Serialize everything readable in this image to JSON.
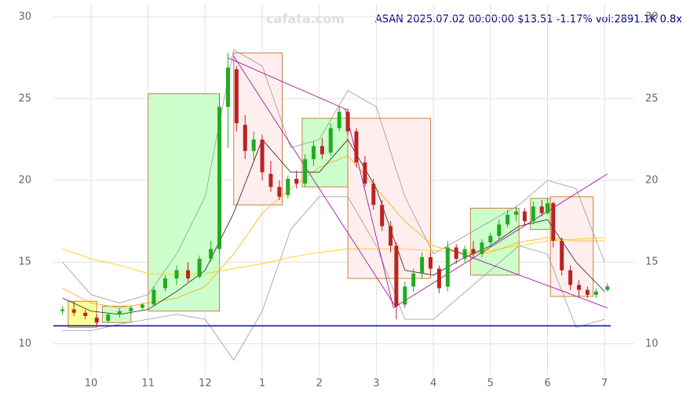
{
  "chart_data": {
    "type": "candlestick",
    "title": "ASAN 2025.07.02 00:00:00 $13.51 -1.17% vol:2891.1K 0.8x",
    "watermark": "cafata.com",
    "xlim": [
      9.34,
      19.52
    ],
    "ylim": [
      8.1,
      30.8
    ],
    "yticks": [
      10,
      15,
      20,
      25,
      30
    ],
    "xticks": [
      {
        "value": 10,
        "label": "10"
      },
      {
        "value": 11,
        "label": "11"
      },
      {
        "value": 12,
        "label": "12"
      },
      {
        "value": 13,
        "label": "1"
      },
      {
        "value": 14,
        "label": "2"
      },
      {
        "value": 15,
        "label": "3"
      },
      {
        "value": 16,
        "label": "4"
      },
      {
        "value": 17,
        "label": "5"
      },
      {
        "value": 18,
        "label": "6"
      },
      {
        "value": 19,
        "label": "7"
      }
    ],
    "grid": true,
    "up_color": "#22aa22",
    "down_color": "#bb2222",
    "candles": {
      "x": [
        9.5,
        9.7,
        9.9,
        10.1,
        10.3,
        10.5,
        10.7,
        10.9,
        11.1,
        11.3,
        11.5,
        11.7,
        11.9,
        12.1,
        12.25,
        12.4,
        12.55,
        12.7,
        12.85,
        13.0,
        13.15,
        13.3,
        13.45,
        13.6,
        13.75,
        13.9,
        14.05,
        14.2,
        14.35,
        14.5,
        14.65,
        14.8,
        14.95,
        15.1,
        15.25,
        15.35,
        15.5,
        15.65,
        15.8,
        15.95,
        16.1,
        16.25,
        16.4,
        16.55,
        16.7,
        16.85,
        17.0,
        17.15,
        17.3,
        17.45,
        17.6,
        17.75,
        17.9,
        18.0,
        18.1,
        18.25,
        18.4,
        18.55,
        18.7,
        18.85,
        19.05
      ],
      "open": [
        12,
        12.1,
        11.9,
        11.6,
        11.4,
        11.8,
        12.0,
        12.2,
        12.4,
        13.4,
        14.0,
        14.5,
        14.1,
        15.2,
        15.8,
        24.5,
        26.8,
        23.4,
        21.8,
        22.5,
        20.4,
        19.6,
        19.1,
        20.1,
        19.8,
        21.3,
        22.1,
        21.7,
        23.2,
        24.2,
        23.0,
        21.1,
        19.8,
        18.5,
        17.2,
        16.0,
        12.4,
        13.5,
        14.3,
        15.3,
        14.6,
        13.5,
        15.9,
        15.2,
        15.8,
        15.5,
        16.2,
        16.6,
        17.3,
        17.9,
        18.1,
        17.5,
        18.4,
        18.0,
        18.6,
        16.3,
        14.5,
        13.6,
        13.3,
        13.0,
        13.3
      ],
      "high": [
        12.3,
        12.6,
        12.1,
        11.8,
        11.9,
        12.2,
        12.3,
        12.5,
        13.5,
        14.2,
        14.8,
        15.0,
        15.4,
        16.3,
        25.3,
        27.8,
        27.0,
        24.0,
        23.0,
        22.8,
        21.2,
        20.0,
        20.3,
        20.6,
        21.6,
        22.4,
        22.6,
        23.5,
        24.5,
        24.4,
        23.2,
        21.5,
        20.1,
        18.8,
        17.5,
        16.2,
        13.8,
        14.6,
        15.6,
        15.6,
        14.8,
        16.3,
        16.1,
        16.0,
        16.3,
        16.4,
        16.8,
        17.6,
        18.2,
        18.4,
        18.3,
        18.7,
        18.8,
        18.9,
        18.7,
        16.5,
        14.8,
        13.9,
        13.5,
        13.4,
        13.7
      ],
      "low": [
        11.8,
        11.7,
        11.5,
        11.1,
        11.3,
        11.6,
        11.8,
        12.0,
        12.3,
        13.2,
        13.6,
        13.8,
        14.0,
        15.0,
        15.6,
        22.0,
        23.0,
        21.3,
        21.2,
        20.0,
        19.3,
        18.8,
        18.9,
        19.5,
        19.6,
        20.9,
        21.3,
        21.5,
        23.0,
        22.8,
        20.8,
        19.6,
        18.2,
        16.9,
        15.6,
        11.5,
        12.2,
        13.2,
        14.0,
        14.3,
        13.1,
        13.2,
        14.9,
        15.0,
        15.3,
        15.3,
        15.9,
        16.4,
        17.1,
        17.5,
        17.2,
        17.3,
        17.8,
        17.9,
        15.9,
        14.2,
        13.3,
        12.9,
        12.8,
        12.8,
        13.2
      ],
      "close": [
        12.1,
        11.9,
        11.7,
        11.3,
        11.8,
        12.0,
        12.2,
        12.4,
        13.3,
        14.0,
        14.5,
        14.0,
        15.2,
        15.8,
        24.5,
        26.9,
        23.5,
        21.8,
        22.5,
        20.5,
        19.6,
        19.0,
        20.1,
        19.8,
        21.3,
        22.1,
        21.6,
        23.2,
        24.2,
        23.0,
        21.1,
        19.8,
        18.5,
        17.2,
        16.0,
        12.3,
        13.5,
        14.3,
        15.3,
        14.6,
        13.4,
        15.9,
        15.2,
        15.8,
        15.5,
        16.2,
        16.6,
        17.3,
        17.9,
        18.1,
        17.5,
        18.4,
        18.0,
        18.6,
        16.3,
        14.5,
        13.6,
        13.3,
        13.0,
        13.2,
        13.51
      ]
    },
    "zones": [
      {
        "color": "#ffff99",
        "x": [
          9.6,
          10.1
        ],
        "y": [
          11.0,
          12.6
        ]
      },
      {
        "color": "#ccffcc",
        "x": [
          10.2,
          10.7
        ],
        "y": [
          11.3,
          12.3
        ]
      },
      {
        "color": "#ccffcc",
        "x": [
          11.0,
          12.25
        ],
        "y": [
          12.0,
          25.3
        ]
      },
      {
        "color": "#ffeeee",
        "x": [
          12.5,
          13.35
        ],
        "y": [
          18.5,
          27.8
        ]
      },
      {
        "color": "#ccffcc",
        "x": [
          13.7,
          14.5
        ],
        "y": [
          19.6,
          23.8
        ]
      },
      {
        "color": "#ffeeee",
        "x": [
          14.5,
          15.95
        ],
        "y": [
          14.0,
          23.8
        ]
      },
      {
        "color": "#ccffcc",
        "x": [
          16.65,
          17.5
        ],
        "y": [
          14.2,
          18.3
        ]
      },
      {
        "color": "#ccffcc",
        "x": [
          17.7,
          18.05
        ],
        "y": [
          17.0,
          18.9
        ]
      },
      {
        "color": "#ffeeee",
        "x": [
          18.05,
          18.8
        ],
        "y": [
          12.9,
          19.0
        ]
      }
    ],
    "lines": {
      "x": [
        9.5,
        10,
        10.5,
        11,
        11.5,
        12,
        12.5,
        13,
        13.5,
        14,
        14.5,
        15,
        15.5,
        16,
        16.5,
        17,
        17.5,
        18,
        18.5,
        19
      ],
      "series": [
        {
          "color": "#999999",
          "values": [
            15,
            13.0,
            12.5,
            13,
            15.5,
            19,
            28,
            27,
            22,
            22.5,
            25.5,
            24.5,
            19,
            15.5,
            16.5,
            17.5,
            18.5,
            20,
            19.5,
            15
          ]
        },
        {
          "color": "#999999",
          "values": [
            10.8,
            10.8,
            11.2,
            11.5,
            11.8,
            11.5,
            9,
            12,
            17,
            19,
            19,
            16,
            11.5,
            11.5,
            13,
            14.5,
            16,
            15.5,
            11,
            11.5
          ]
        },
        {
          "color": "#ffcc00",
          "values": [
            15.8,
            15.2,
            14.8,
            14.3,
            14.2,
            14.3,
            14.6,
            14.9,
            15.3,
            15.6,
            15.8,
            15.8,
            15.8,
            15.7,
            15.6,
            15.7,
            16.0,
            16.3,
            16.4,
            16.5
          ]
        },
        {
          "color": "#ffaa00",
          "values": [
            13.4,
            12.5,
            12.2,
            12.5,
            12.8,
            13.5,
            15.5,
            18,
            19.5,
            20.8,
            21.5,
            19.5,
            17.5,
            16.0,
            15.5,
            15.6,
            16.2,
            16.5,
            16.3,
            16.3
          ]
        },
        {
          "color": "#222222",
          "values": [
            12.8,
            12.0,
            11.8,
            12.1,
            13.2,
            14.5,
            18,
            22.5,
            20.5,
            20.5,
            22.5,
            19.5,
            14.5,
            14.2,
            15.2,
            16.0,
            17.2,
            17.6,
            15,
            13.2
          ]
        }
      ]
    },
    "trend_lines": {
      "color": "#990099",
      "segments": [
        [
          12.4,
          27.5,
          14.5,
          24.3
        ],
        [
          12.5,
          27.6,
          15.35,
          12.2
        ],
        [
          14.45,
          24.4,
          15.3,
          12.2
        ],
        [
          15.3,
          12.2,
          19.05,
          20.4
        ],
        [
          16.2,
          15.9,
          19.05,
          12.2
        ]
      ]
    },
    "support": {
      "color": "#0000cc",
      "value": 11.1
    }
  }
}
